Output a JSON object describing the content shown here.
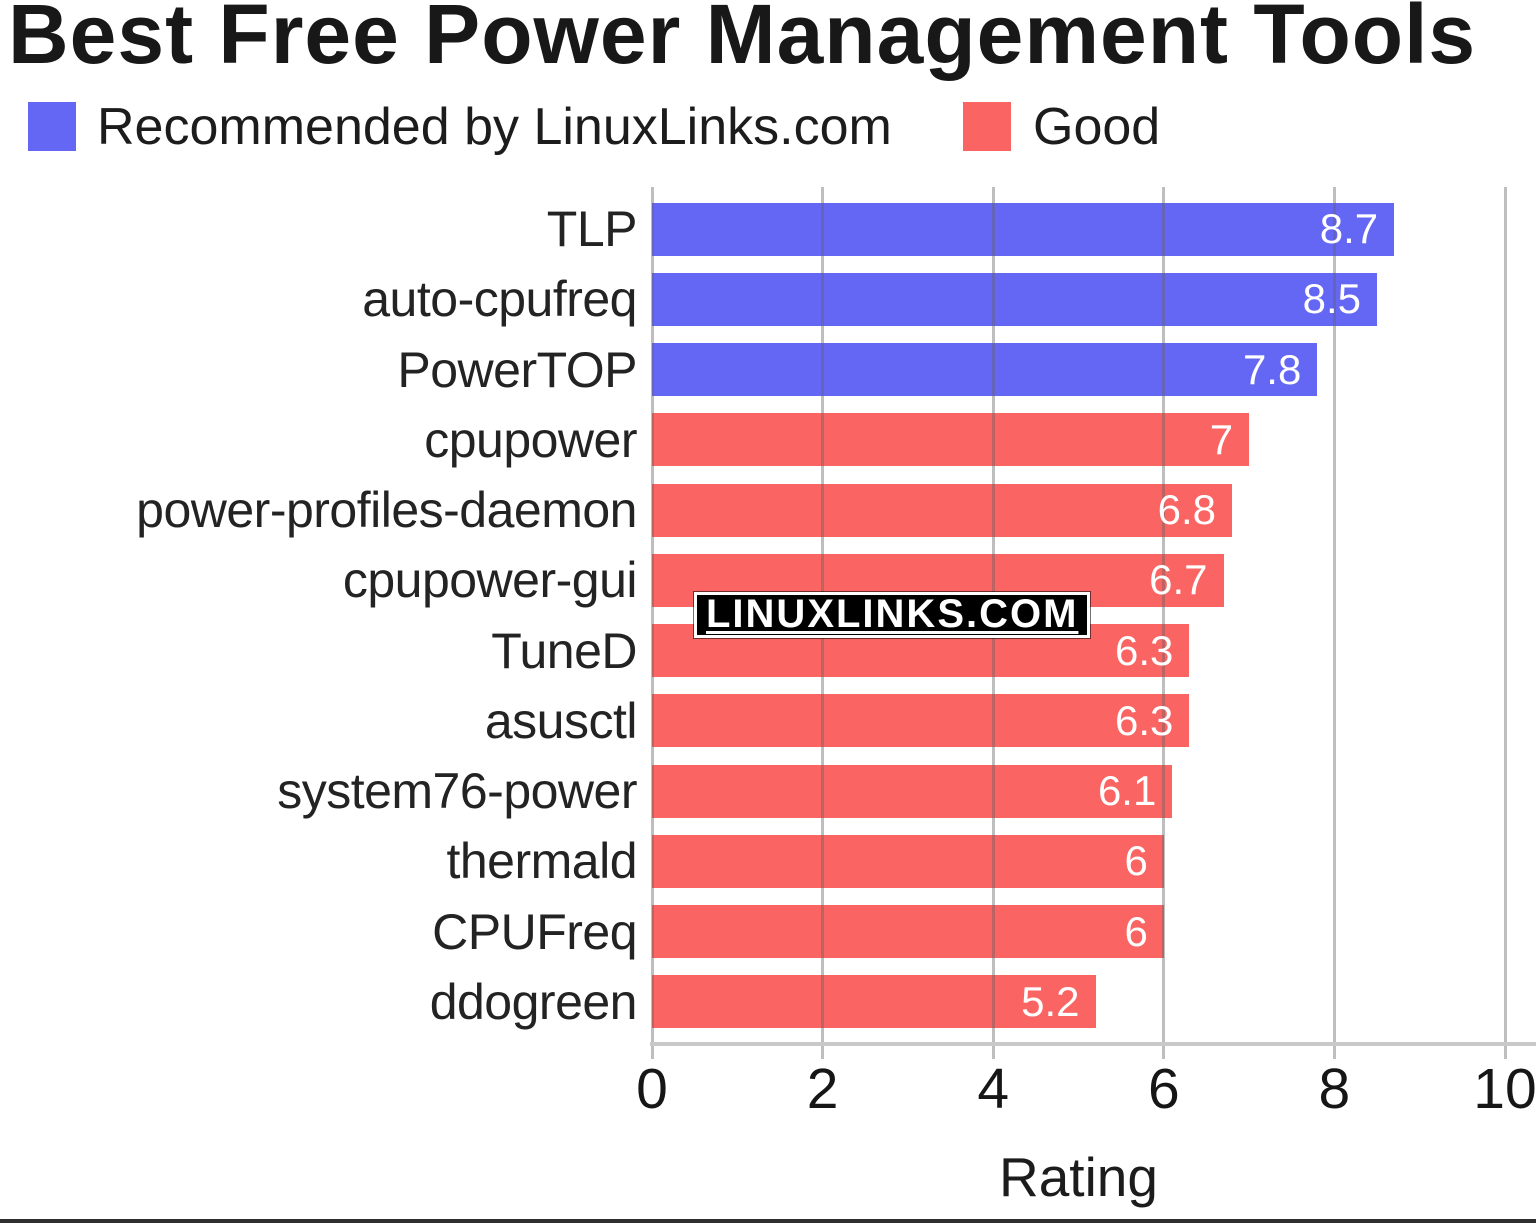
{
  "title": "Best Free Power Management Tools",
  "legend": {
    "items": [
      {
        "id": "recommended",
        "label": "Recommended by LinuxLinks.com",
        "color": "#6467f4"
      },
      {
        "id": "good",
        "label": "Good",
        "color": "#fa6462"
      }
    ]
  },
  "watermark": {
    "text": "LINUXLINKS.COM"
  },
  "x_axis": {
    "label": "Rating",
    "tick_labels": [
      "0",
      "2",
      "4",
      "6",
      "8",
      "10"
    ]
  },
  "chart_data": {
    "type": "bar",
    "orientation": "horizontal",
    "title": "Best Free Power Management Tools",
    "xlabel": "Rating",
    "xlim": [
      0,
      10
    ],
    "xticks": [
      0,
      2,
      4,
      6,
      8,
      10
    ],
    "grid": "vertical gridlines at even ticks, drawn over bars",
    "legend_position": "top-left",
    "value_label_color": "#ffffff",
    "categories": [
      "TLP",
      "auto-cpufreq",
      "PowerTOP",
      "cpupower",
      "power-profiles-daemon",
      "cpupower-gui",
      "TuneD",
      "asusctl",
      "system76-power",
      "thermald",
      "CPUFreq",
      "ddogreen"
    ],
    "values": [
      8.7,
      8.5,
      7.8,
      7,
      6.8,
      6.7,
      6.3,
      6.3,
      6.1,
      6,
      6,
      5.2
    ],
    "value_labels": [
      "8.7",
      "8.5",
      "7.8",
      "7",
      "6.8",
      "6.7",
      "6.3",
      "6.3",
      "6.1",
      "6",
      "6",
      "5.2"
    ],
    "bar_groups": [
      "recommended",
      "recommended",
      "recommended",
      "good",
      "good",
      "good",
      "good",
      "good",
      "good",
      "good",
      "good",
      "good"
    ],
    "group_colors": {
      "recommended": "#6467f4",
      "good": "#fa6462"
    },
    "series": [
      {
        "name": "Recommended by LinuxLinks.com",
        "color": "#6467f4",
        "categories": [
          "TLP",
          "auto-cpufreq",
          "PowerTOP"
        ],
        "values": [
          8.7,
          8.5,
          7.8
        ]
      },
      {
        "name": "Good",
        "color": "#fa6462",
        "categories": [
          "cpupower",
          "power-profiles-daemon",
          "cpupower-gui",
          "TuneD",
          "asusctl",
          "system76-power",
          "thermald",
          "CPUFreq",
          "ddogreen"
        ],
        "values": [
          7,
          6.8,
          6.7,
          6.3,
          6.3,
          6.1,
          6,
          6,
          5.2
        ]
      }
    ]
  }
}
